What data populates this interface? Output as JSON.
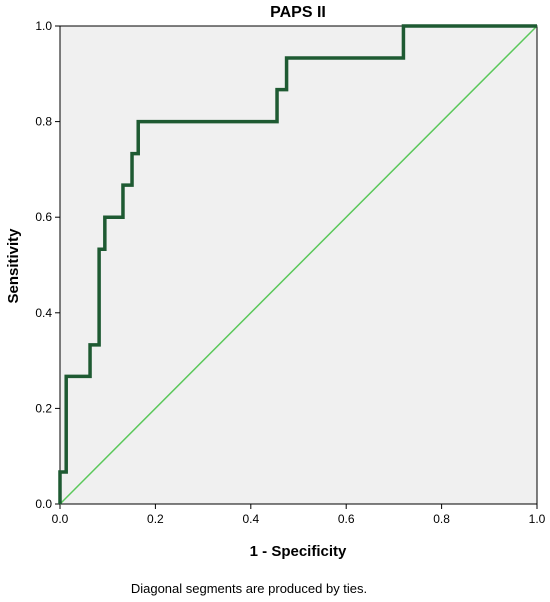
{
  "chart_data": {
    "type": "line",
    "title": "PAPS II",
    "xlabel": "1 - Specificity",
    "ylabel": "Sensitivity",
    "xlim": [
      0,
      1
    ],
    "ylim": [
      0,
      1
    ],
    "x_ticks": [
      "0.0",
      "0.2",
      "0.4",
      "0.6",
      "0.8",
      "1.0"
    ],
    "y_ticks": [
      "0.0",
      "0.2",
      "0.4",
      "0.6",
      "0.8",
      "1.0"
    ],
    "grid": false,
    "series": [
      {
        "color": "#1e5a32",
        "points": [
          [
            0.0,
            0.0
          ],
          [
            0.0,
            0.067
          ],
          [
            0.013,
            0.067
          ],
          [
            0.013,
            0.267
          ],
          [
            0.063,
            0.267
          ],
          [
            0.063,
            0.333
          ],
          [
            0.082,
            0.333
          ],
          [
            0.082,
            0.533
          ],
          [
            0.094,
            0.533
          ],
          [
            0.094,
            0.6
          ],
          [
            0.132,
            0.6
          ],
          [
            0.132,
            0.667
          ],
          [
            0.151,
            0.667
          ],
          [
            0.151,
            0.733
          ],
          [
            0.164,
            0.733
          ],
          [
            0.164,
            0.8
          ],
          [
            0.455,
            0.8
          ],
          [
            0.455,
            0.867
          ],
          [
            0.475,
            0.867
          ],
          [
            0.475,
            0.933
          ],
          [
            0.72,
            0.933
          ],
          [
            0.72,
            1.0
          ],
          [
            1.0,
            1.0
          ]
        ]
      },
      {
        "color": "#5ac85a",
        "points": [
          [
            0,
            0
          ],
          [
            1,
            1
          ]
        ]
      }
    ],
    "plot_background": "#f0f0f0",
    "footnote": "Diagonal segments are produced by ties."
  }
}
